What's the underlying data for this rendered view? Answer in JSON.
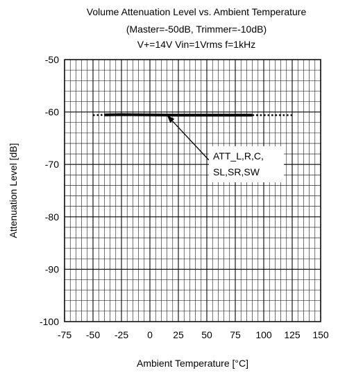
{
  "chart_data": {
    "type": "line",
    "title": "Volume Attenuation Level vs. Ambient Temperature",
    "subtitle_lines": [
      "(Master=-50dB, Trimmer=-10dB)",
      "V+=14V Vin=1Vrms f=1kHz"
    ],
    "xlabel": "Ambient Temperature [°C]",
    "ylabel": "Attenuation Level [dB]",
    "xlim": [
      -75,
      150
    ],
    "ylim": [
      -100,
      -50
    ],
    "x_ticks": [
      "-75",
      "-50",
      "-25",
      "0",
      "25",
      "50",
      "75",
      "100",
      "125",
      "150"
    ],
    "y_ticks": [
      "-50",
      "-60",
      "-70",
      "-80",
      "-90",
      "-100"
    ],
    "grid": true,
    "series": [
      {
        "name": "ATT_L,R,C, SL,SR,SW",
        "style": "solid",
        "x": [
          -40,
          -25,
          0,
          25,
          50,
          75,
          90
        ],
        "y": [
          -60.55,
          -60.5,
          -60.55,
          -60.6,
          -60.6,
          -60.6,
          -60.6
        ]
      },
      {
        "style": "dotted",
        "x": [
          -50,
          -40
        ],
        "y": [
          -60.6,
          -60.55
        ]
      },
      {
        "style": "dotted",
        "x": [
          90,
          125
        ],
        "y": [
          -60.6,
          -60.6
        ]
      }
    ],
    "annotation": {
      "lines": [
        "ATT_L,R,C,",
        "SL,SR,SW"
      ],
      "points_to": {
        "x": 15,
        "y": -60.6
      }
    }
  }
}
